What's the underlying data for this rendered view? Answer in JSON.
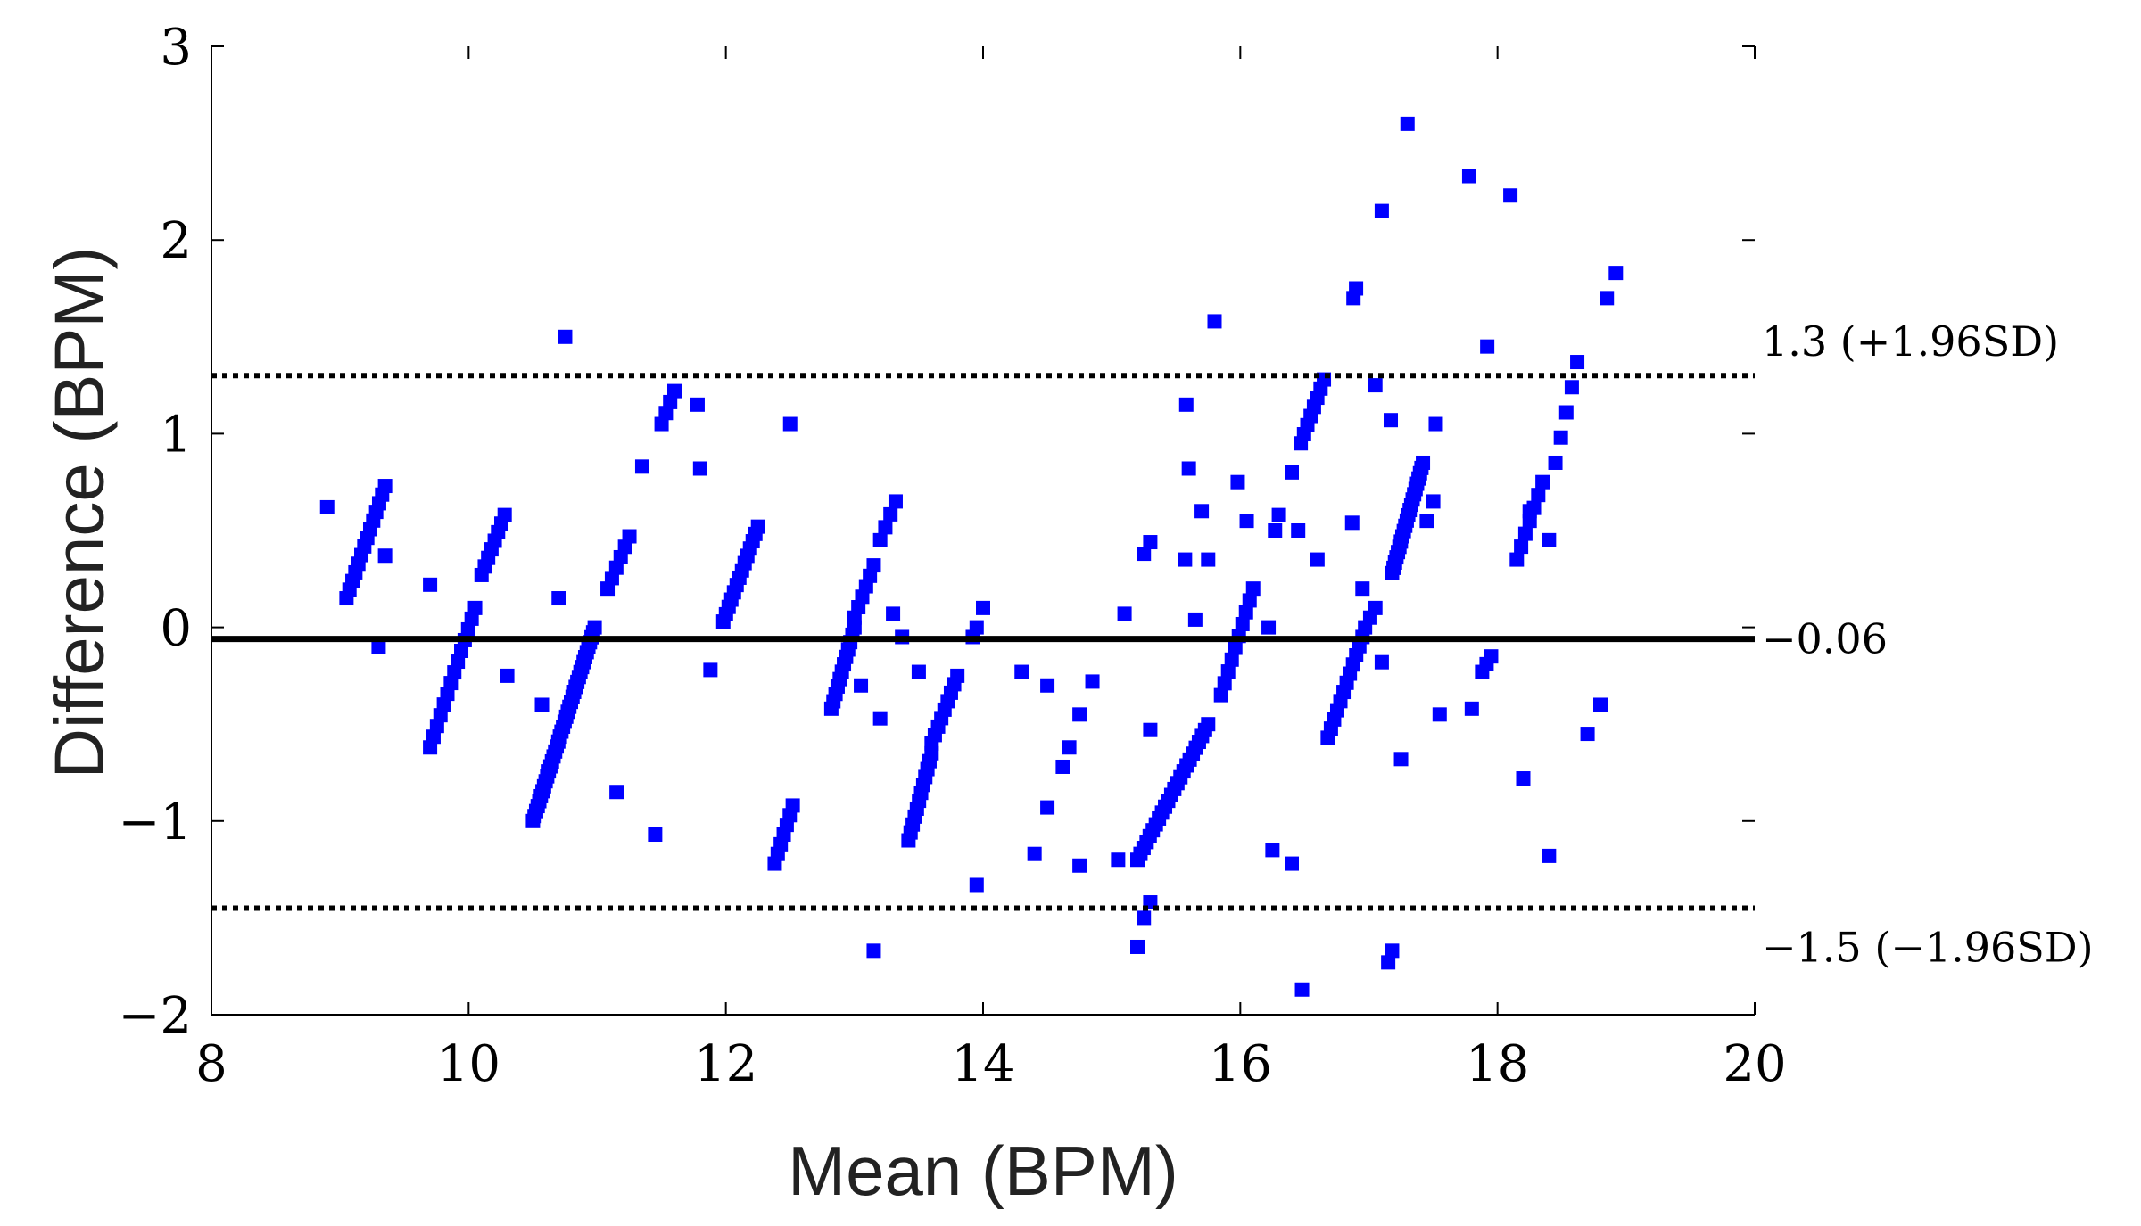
{
  "chart_data": {
    "type": "scatter",
    "title": "",
    "xlabel": "Mean (BPM)",
    "ylabel": "Difference (BPM)",
    "xlim": [
      8,
      20
    ],
    "ylim": [
      -2,
      3
    ],
    "xticks": [
      8,
      10,
      12,
      14,
      16,
      18,
      20
    ],
    "yticks": [
      -2,
      -1,
      0,
      1,
      2,
      3
    ],
    "xtick_labels": [
      "8",
      "10",
      "12",
      "14",
      "16",
      "18",
      "20"
    ],
    "ytick_labels": [
      "−2",
      "−1",
      "0",
      "1",
      "2",
      "3"
    ],
    "marker_color": "#0000ff",
    "grid": false,
    "reference_lines": [
      {
        "y": 1.3,
        "style": "dotted",
        "label": "1.3 (+1.96SD)"
      },
      {
        "y": -0.06,
        "style": "solid",
        "label": "−0.06"
      },
      {
        "y": -1.45,
        "style": "dotted",
        "label": "−1.5 (−1.96SD)"
      }
    ],
    "series": [
      {
        "points": [
          [
            8.9,
            0.62
          ],
          [
            9.3,
            -0.1
          ],
          [
            9.35,
            0.37
          ],
          [
            9.7,
            0.22
          ],
          [
            10.7,
            0.15
          ],
          [
            10.75,
            1.5
          ],
          [
            10.57,
            -0.4
          ],
          [
            10.3,
            -0.25
          ],
          [
            11.15,
            -0.85
          ],
          [
            11.45,
            -1.07
          ],
          [
            11.35,
            0.83
          ],
          [
            11.8,
            0.82
          ],
          [
            11.78,
            1.15
          ],
          [
            11.88,
            -0.22
          ],
          [
            12.5,
            1.05
          ],
          [
            13.05,
            -0.3
          ],
          [
            13.2,
            -0.47
          ],
          [
            13.15,
            -1.67
          ],
          [
            13.3,
            0.07
          ],
          [
            13.5,
            -0.23
          ],
          [
            13.95,
            -1.33
          ],
          [
            14.3,
            -0.23
          ],
          [
            14.5,
            -0.3
          ],
          [
            14.5,
            -0.93
          ],
          [
            14.75,
            -1.23
          ],
          [
            14.75,
            -0.45
          ],
          [
            14.85,
            -0.28
          ],
          [
            15.05,
            -1.2
          ],
          [
            15.1,
            0.07
          ],
          [
            15.3,
            -0.53
          ],
          [
            15.58,
            1.15
          ],
          [
            15.57,
            0.35
          ],
          [
            15.6,
            0.82
          ],
          [
            15.65,
            0.04
          ],
          [
            15.7,
            0.6
          ],
          [
            15.75,
            0.35
          ],
          [
            15.8,
            1.58
          ],
          [
            15.98,
            0.75
          ],
          [
            16.05,
            0.55
          ],
          [
            16.22,
            0.0
          ],
          [
            16.25,
            -1.15
          ],
          [
            16.27,
            0.5
          ],
          [
            16.3,
            0.58
          ],
          [
            16.4,
            -1.22
          ],
          [
            16.4,
            0.8
          ],
          [
            16.45,
            0.5
          ],
          [
            16.48,
            -1.87
          ],
          [
            16.6,
            0.35
          ],
          [
            16.87,
            0.54
          ],
          [
            16.88,
            1.7
          ],
          [
            16.9,
            1.75
          ],
          [
            16.95,
            0.2
          ],
          [
            17.05,
            1.25
          ],
          [
            17.1,
            2.15
          ],
          [
            17.1,
            -0.18
          ],
          [
            17.15,
            -1.73
          ],
          [
            17.18,
            -1.67
          ],
          [
            17.17,
            1.07
          ],
          [
            17.25,
            -0.68
          ],
          [
            17.3,
            2.6
          ],
          [
            17.52,
            1.05
          ],
          [
            17.55,
            -0.45
          ],
          [
            17.78,
            2.33
          ],
          [
            17.8,
            -0.42
          ],
          [
            17.92,
            1.45
          ],
          [
            18.1,
            2.23
          ],
          [
            18.2,
            -0.78
          ],
          [
            18.25,
            0.6
          ],
          [
            18.4,
            -1.18
          ],
          [
            18.4,
            0.45
          ],
          [
            18.7,
            -0.55
          ],
          [
            18.8,
            -0.4
          ],
          [
            18.85,
            1.7
          ],
          [
            18.92,
            1.83
          ],
          [
            15.2,
            -1.65
          ],
          [
            15.25,
            -1.5
          ],
          [
            15.3,
            -1.42
          ],
          [
            14.4,
            -1.17
          ],
          [
            14.0,
            0.1
          ],
          [
            13.37,
            -0.05
          ]
        ],
        "segments": [
          [
            9.05,
            0.15,
            9.35,
            0.73,
            14
          ],
          [
            9.7,
            -0.62,
            10.05,
            0.1,
            14
          ],
          [
            10.1,
            0.27,
            10.28,
            0.58,
            8
          ],
          [
            10.5,
            -1.0,
            10.98,
            0.0,
            40
          ],
          [
            11.08,
            0.2,
            11.25,
            0.47,
            6
          ],
          [
            11.5,
            1.05,
            11.6,
            1.22,
            4
          ],
          [
            11.98,
            0.03,
            12.25,
            0.52,
            14
          ],
          [
            12.38,
            -1.22,
            12.52,
            -0.92,
            7
          ],
          [
            12.82,
            -0.42,
            13.0,
            0.0,
            12
          ],
          [
            13.0,
            0.05,
            13.15,
            0.32,
            6
          ],
          [
            13.2,
            0.45,
            13.32,
            0.65,
            4
          ],
          [
            13.42,
            -1.1,
            13.6,
            -0.65,
            12
          ],
          [
            13.6,
            -0.6,
            13.8,
            -0.25,
            9
          ],
          [
            13.92,
            -0.05,
            13.95,
            0.0,
            2
          ],
          [
            14.62,
            -0.72,
            14.67,
            -0.62,
            2
          ],
          [
            15.2,
            -1.2,
            15.75,
            -0.5,
            24
          ],
          [
            15.25,
            0.38,
            15.3,
            0.44,
            2
          ],
          [
            15.85,
            -0.35,
            16.1,
            0.2,
            10
          ],
          [
            16.47,
            0.95,
            16.65,
            1.28,
            8
          ],
          [
            16.68,
            -0.57,
            16.95,
            -0.05,
            12
          ],
          [
            16.97,
            0.0,
            17.05,
            0.1,
            3
          ],
          [
            17.18,
            0.28,
            17.42,
            0.85,
            22
          ],
          [
            17.45,
            0.55,
            17.5,
            0.65,
            2
          ],
          [
            17.88,
            -0.23,
            17.95,
            -0.15,
            3
          ],
          [
            18.15,
            0.35,
            18.35,
            0.75,
            7
          ],
          [
            18.45,
            0.85,
            18.62,
            1.37,
            5
          ]
        ]
      }
    ]
  }
}
